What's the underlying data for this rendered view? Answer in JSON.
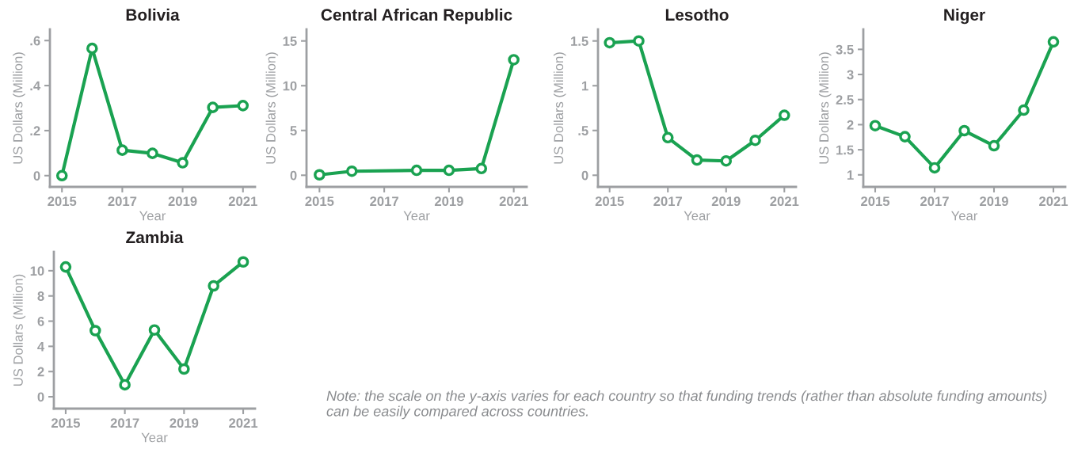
{
  "chart_data": [
    {
      "type": "line",
      "title": "Bolivia",
      "xlabel": "Year",
      "ylabel": "US Dollars (Million)",
      "x": [
        2015,
        2016,
        2017,
        2018,
        2019,
        2020,
        2021
      ],
      "xlim": [
        2014.6,
        2021.4
      ],
      "xticks": [
        2015,
        2017,
        2019,
        2021
      ],
      "ylim": [
        -0.05,
        0.65
      ],
      "yticks": [
        {
          "value": 0,
          "label": "0"
        },
        {
          "value": 0.2,
          "label": ".2"
        },
        {
          "value": 0.4,
          "label": ".4"
        },
        {
          "value": 0.6,
          "label": ".6"
        }
      ],
      "marker": "circle",
      "line_style": "solid",
      "grid": false,
      "legend": false,
      "series": [
        {
          "color": "#1aa251",
          "values": [
            0,
            0.565,
            0.113,
            0.099,
            0.057,
            0.303,
            0.311
          ]
        }
      ]
    },
    {
      "type": "line",
      "title": "Central African Republic",
      "xlabel": "Year",
      "ylabel": "US Dollars (Million)",
      "x": [
        2015,
        2016,
        2018,
        2019,
        2020,
        2021
      ],
      "xlim": [
        2014.6,
        2021.4
      ],
      "xticks": [
        2015,
        2017,
        2019,
        2021
      ],
      "ylim": [
        -1.3,
        16.3
      ],
      "yticks": [
        0,
        5,
        10,
        15
      ],
      "marker": "circle",
      "line_style": "solid",
      "grid": false,
      "legend": false,
      "series": [
        {
          "color": "#1aa251",
          "values": [
            0.05,
            0.45,
            0.55,
            0.55,
            0.75,
            12.9
          ]
        }
      ]
    },
    {
      "type": "line",
      "title": "Lesotho",
      "xlabel": "Year",
      "ylabel": "US Dollars (Million)",
      "x": [
        2015,
        2016,
        2017,
        2018,
        2019,
        2020,
        2021
      ],
      "xlim": [
        2014.6,
        2021.4
      ],
      "xticks": [
        2015,
        2017,
        2019,
        2021
      ],
      "ylim": [
        -0.13,
        1.63
      ],
      "yticks": [
        0,
        {
          "value": 0.5,
          "label": ".5"
        },
        1,
        1.5
      ],
      "marker": "circle",
      "line_style": "solid",
      "grid": false,
      "legend": false,
      "series": [
        {
          "color": "#1aa251",
          "values": [
            1.48,
            1.5,
            0.42,
            0.17,
            0.16,
            0.39,
            0.67
          ]
        }
      ]
    },
    {
      "type": "line",
      "title": "Niger",
      "xlabel": "Year",
      "ylabel": "US Dollars (Million)",
      "x": [
        2015,
        2016,
        2017,
        2018,
        2019,
        2020,
        2021
      ],
      "xlim": [
        2014.6,
        2021.4
      ],
      "xticks": [
        2015,
        2017,
        2019,
        2021
      ],
      "ylim": [
        0.76,
        3.9
      ],
      "yticks": [
        1,
        1.5,
        2,
        2.5,
        3,
        3.5
      ],
      "marker": "circle",
      "line_style": "solid",
      "grid": false,
      "legend": false,
      "series": [
        {
          "color": "#1aa251",
          "values": [
            1.98,
            1.76,
            1.14,
            1.88,
            1.58,
            2.29,
            3.65
          ]
        }
      ]
    },
    {
      "type": "line",
      "title": "Zambia",
      "xlabel": "Year",
      "ylabel": "US Dollars (Million)",
      "x": [
        2015,
        2016,
        2017,
        2018,
        2019,
        2020,
        2021
      ],
      "xlim": [
        2014.6,
        2021.4
      ],
      "xticks": [
        2015,
        2017,
        2019,
        2021
      ],
      "ylim": [
        -0.94,
        11.5
      ],
      "yticks": [
        0,
        2,
        4,
        6,
        8,
        10
      ],
      "marker": "circle",
      "line_style": "solid",
      "grid": false,
      "legend": false,
      "series": [
        {
          "color": "#1aa251",
          "values": [
            10.3,
            5.25,
            0.95,
            5.3,
            2.2,
            8.8,
            10.7
          ]
        }
      ],
      "annotations": [
        "Note: the scale on the y-axis varies for each country so that funding trends (rather than absolute funding amounts) can be easily compared across countries."
      ]
    }
  ]
}
